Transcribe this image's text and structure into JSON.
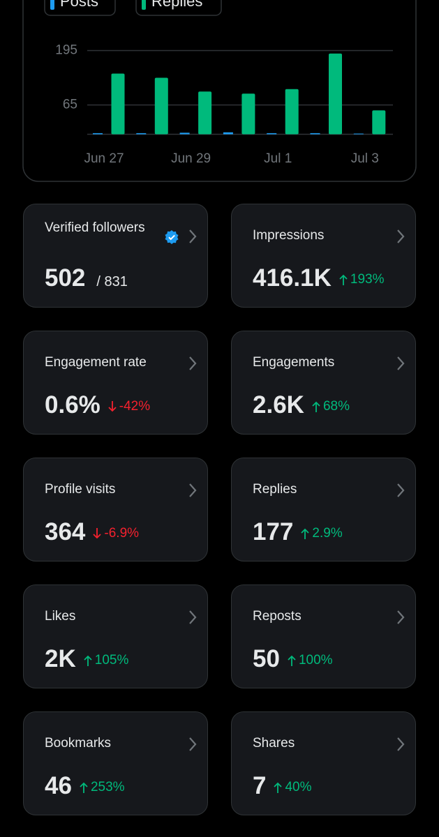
{
  "chart_data": {
    "type": "bar",
    "categories": [
      "Jun 27",
      null,
      "Jun 29",
      null,
      "Jul 1",
      null,
      "Jul 3"
    ],
    "series": [
      {
        "name": "Posts",
        "color": "#1d9bf0",
        "values": [
          1,
          1,
          2,
          3,
          1,
          1,
          0
        ]
      },
      {
        "name": "Replies",
        "color": "#00ba7c",
        "values": [
          145,
          135,
          102,
          97,
          108,
          193,
          57
        ]
      }
    ],
    "ylim": [
      0,
      195
    ],
    "yticks": [
      65,
      195
    ],
    "grid": true
  },
  "cards": [
    {
      "label": "Verified followers",
      "value": "502",
      "total": "/ 831",
      "verified": true
    },
    {
      "label": "Impressions",
      "value": "416.1K",
      "change": "193%",
      "direction": "up"
    },
    {
      "label": "Engagement rate",
      "value": "0.6%",
      "change": "-42%",
      "direction": "down"
    },
    {
      "label": "Engagements",
      "value": "2.6K",
      "change": "68%",
      "direction": "up"
    },
    {
      "label": "Profile visits",
      "value": "364",
      "change": "-6.9%",
      "direction": "down"
    },
    {
      "label": "Replies",
      "value": "177",
      "change": "2.9%",
      "direction": "up"
    },
    {
      "label": "Likes",
      "value": "2K",
      "change": "105%",
      "direction": "up"
    },
    {
      "label": "Reposts",
      "value": "50",
      "change": "100%",
      "direction": "up"
    },
    {
      "label": "Bookmarks",
      "value": "46",
      "change": "253%",
      "direction": "up"
    },
    {
      "label": "Shares",
      "value": "7",
      "change": "40%",
      "direction": "up"
    }
  ]
}
